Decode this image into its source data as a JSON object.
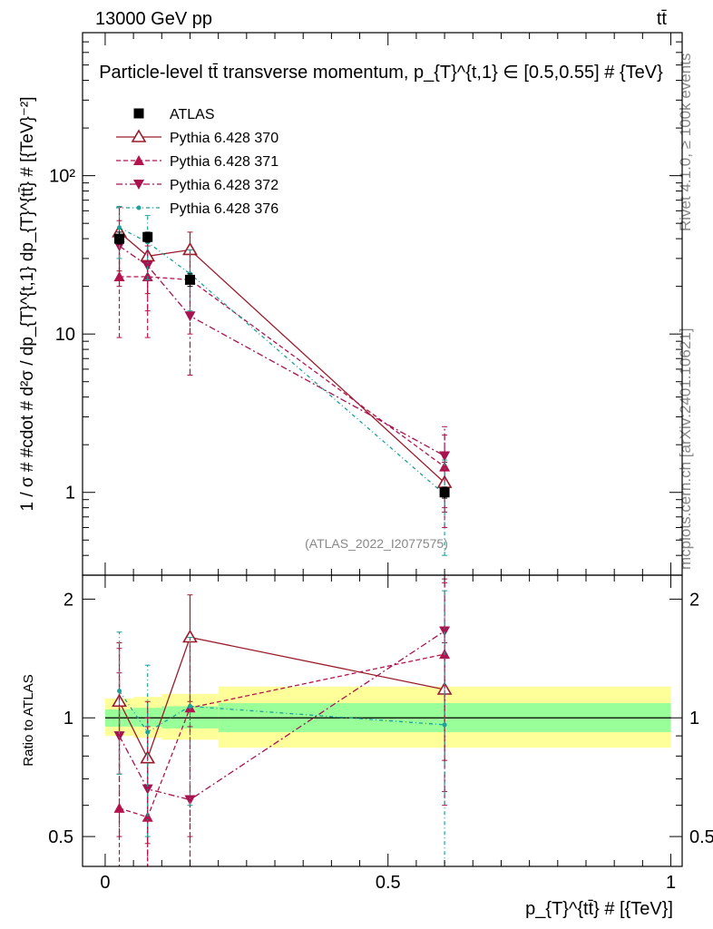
{
  "header": {
    "energy_label": "13000 GeV pp",
    "process_label": "tt̄"
  },
  "side_labels": {
    "rivet": "Rivet 4.1.0, ≥ 100k events",
    "mcplots": "mcplots.cern.ch [arXiv:2401.10621]"
  },
  "colors": {
    "atlas": "#000000",
    "p370": "#9a1c2a",
    "p371": "#b5134d",
    "p372": "#a8124f",
    "p376": "#1aa39a",
    "band_inner": "#99ff99",
    "band_outer": "#ffff99"
  },
  "chart_data": [
    {
      "type": "scatter",
      "title": "Particle-level tt̄ transverse momentum, p_{T}^{t,1} ∈ [0.5,0.55] # {TeV}",
      "analysis_tag": "(ATLAS_2022_I2077575)",
      "xlabel": "p_{T}^{tt̄} # [{TeV}]",
      "ylabel": "1 / σ # #cdot # d²σ / dp_{T}^{t,1} dp_{T}^{tt̄} # [{TeV}⁻²]",
      "yscale": "log",
      "xlim": [
        -0.04,
        1.02
      ],
      "ylim": [
        0.3,
        800
      ],
      "yticks": [
        1,
        10,
        100
      ],
      "ytick_labels": [
        "1",
        "10",
        "10²"
      ],
      "series": [
        {
          "key": "atlas",
          "name": "ATLAS",
          "marker": "square",
          "x": [
            0.025,
            0.075,
            0.15,
            0.6
          ],
          "y": [
            40,
            41,
            22,
            1.0
          ],
          "yerr": [
            [
              37,
              44
            ],
            [
              38,
              44
            ],
            [
              20,
              24
            ],
            [
              0.92,
              1.08
            ]
          ]
        },
        {
          "key": "p370",
          "name": "Pythia 6.428 370",
          "marker": "triangle-up-open",
          "line": "solid",
          "x": [
            0.025,
            0.075,
            0.15,
            0.6
          ],
          "y": [
            44,
            31,
            34,
            1.15
          ],
          "yerr": [
            [
              25,
              63
            ],
            [
              18,
              43
            ],
            [
              23,
              44
            ],
            [
              0.75,
              1.55
            ]
          ]
        },
        {
          "key": "p371",
          "name": "Pythia 6.428 371",
          "marker": "triangle-up",
          "line": "dashed",
          "x": [
            0.025,
            0.075,
            0.15,
            0.6
          ],
          "y": [
            23,
            23,
            22,
            1.45
          ],
          "yerr": [
            [
              9.5,
              36
            ],
            [
              9.5,
              36
            ],
            [
              10,
              34
            ],
            [
              0.6,
              2.3
            ]
          ]
        },
        {
          "key": "p372",
          "name": "Pythia 6.428 372",
          "marker": "triangle-down",
          "line": "dashdot",
          "x": [
            0.025,
            0.075,
            0.15,
            0.6
          ],
          "y": [
            36,
            27,
            13,
            1.7
          ],
          "yerr": [
            [
              20,
              52
            ],
            [
              14,
              40
            ],
            [
              5.5,
              21
            ],
            [
              0.8,
              2.6
            ]
          ]
        },
        {
          "key": "p376",
          "name": "Pythia 6.428 376",
          "marker": "dot",
          "line": "dashdot-teal",
          "x": [
            0.025,
            0.075,
            0.15,
            0.6
          ],
          "y": [
            47,
            38,
            24,
            0.97
          ],
          "yerr": [
            [
              30,
              64
            ],
            [
              22,
              56
            ],
            [
              14,
              34
            ],
            [
              0.4,
              1.6
            ]
          ]
        }
      ]
    },
    {
      "type": "scatter",
      "ylabel": "Ratio to ATLAS",
      "yscale": "log",
      "xlim": [
        -0.04,
        1.02
      ],
      "ylim": [
        0.42,
        2.3
      ],
      "xticks": [
        0,
        0.5,
        1
      ],
      "xtick_labels": [
        "0",
        "0.5",
        "1"
      ],
      "yticks": [
        0.5,
        1,
        2
      ],
      "ytick_labels": [
        "0.5",
        "1",
        "2"
      ],
      "bands": [
        {
          "x0": 0.0,
          "x1": 0.05,
          "inner": [
            0.95,
            1.05
          ],
          "outer": [
            0.9,
            1.12
          ]
        },
        {
          "x0": 0.05,
          "x1": 0.1,
          "inner": [
            0.95,
            1.06
          ],
          "outer": [
            0.89,
            1.13
          ]
        },
        {
          "x0": 0.1,
          "x1": 0.2,
          "inner": [
            0.94,
            1.07
          ],
          "outer": [
            0.88,
            1.15
          ]
        },
        {
          "x0": 0.2,
          "x1": 1.0,
          "inner": [
            0.92,
            1.09
          ],
          "outer": [
            0.84,
            1.2
          ]
        }
      ],
      "series": [
        {
          "key": "p370",
          "x": [
            0.025,
            0.075,
            0.15,
            0.6
          ],
          "y": [
            1.1,
            0.79,
            1.6,
            1.18
          ],
          "yerr": [
            [
              0.72,
              1.55
            ],
            [
              0.48,
              1.1
            ],
            [
              1.1,
              2.05
            ],
            [
              0.78,
              1.55
            ]
          ]
        },
        {
          "key": "p371",
          "x": [
            0.025,
            0.075,
            0.15,
            0.6
          ],
          "y": [
            0.59,
            0.56,
            1.06,
            1.45
          ],
          "yerr": [
            [
              0.38,
              1.5
            ],
            [
              0.35,
              1.0
            ],
            [
              0.5,
              1.6
            ],
            [
              0.6,
              2.2
            ]
          ]
        },
        {
          "key": "p372",
          "x": [
            0.025,
            0.075,
            0.15,
            0.6
          ],
          "y": [
            0.9,
            0.66,
            0.62,
            1.66
          ],
          "yerr": [
            [
              0.5,
              1.3
            ],
            [
              0.38,
              0.95
            ],
            [
              0.35,
              0.95
            ],
            [
              0.65,
              2.25
            ]
          ]
        },
        {
          "key": "p376",
          "x": [
            0.025,
            0.075,
            0.15,
            0.6
          ],
          "y": [
            1.17,
            0.92,
            1.07,
            0.96
          ],
          "yerr": [
            [
              0.72,
              1.65
            ],
            [
              0.5,
              1.36
            ],
            [
              0.6,
              1.6
            ],
            [
              0.4,
              2.1
            ]
          ]
        }
      ]
    }
  ]
}
